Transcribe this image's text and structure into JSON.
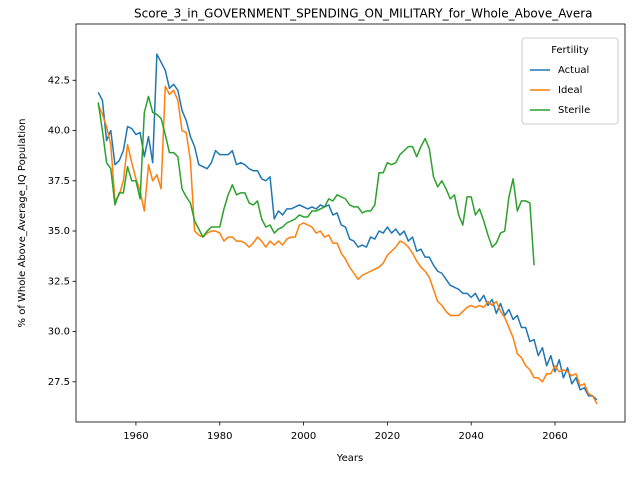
{
  "chart_data": {
    "type": "line",
    "title": "Score_3_in_GOVERNMENT_SPENDING_ON_MILITARY_for_Whole_Above_Avera",
    "xlabel": "Years",
    "ylabel": "% of Whole Above_Average_IQ Population",
    "legend_title": "Fertility",
    "legend": "upper right",
    "x": [
      1951,
      1952,
      1953,
      1954,
      1955,
      1956,
      1957,
      1958,
      1959,
      1960,
      1961,
      1962,
      1963,
      1964,
      1965,
      1966,
      1967,
      1968,
      1969,
      1970,
      1971,
      1972,
      1973,
      1974,
      1975,
      1976,
      1977,
      1978,
      1979,
      1980,
      1981,
      1982,
      1983,
      1984,
      1985,
      1986,
      1987,
      1988,
      1989,
      1990,
      1991,
      1992,
      1993,
      1994,
      1995,
      1996,
      1997,
      1998,
      1999,
      2000,
      2001,
      2002,
      2003,
      2004,
      2005,
      2006,
      2007,
      2008,
      2009,
      2010,
      2011,
      2012,
      2013,
      2014,
      2015,
      2016,
      2017,
      2018,
      2019,
      2020,
      2021,
      2022,
      2023,
      2024,
      2025,
      2026,
      2027,
      2028,
      2029,
      2030,
      2031,
      2032,
      2033,
      2034,
      2035,
      2036,
      2037,
      2038,
      2039,
      2040,
      2041,
      2042,
      2043,
      2044,
      2045,
      2046,
      2047,
      2048,
      2049,
      2050,
      2051,
      2052,
      2053,
      2054,
      2055,
      2056,
      2057,
      2058,
      2059,
      2060,
      2061,
      2062,
      2063,
      2064,
      2065,
      2066,
      2067,
      2068,
      2069,
      2070
    ],
    "series": [
      {
        "name": "Actual",
        "color": "#1f77b4",
        "values": [
          41.9,
          41.5,
          39.5,
          40.0,
          38.3,
          38.5,
          39.0,
          40.2,
          40.1,
          39.8,
          39.9,
          38.7,
          39.7,
          38.4,
          43.8,
          43.4,
          43.0,
          42.1,
          42.3,
          42.0,
          41.0,
          40.5,
          39.7,
          39.2,
          38.3,
          38.2,
          38.1,
          38.4,
          39.0,
          38.8,
          38.8,
          38.8,
          39.0,
          38.3,
          38.4,
          38.3,
          38.1,
          38.0,
          38.0,
          37.6,
          37.5,
          37.7,
          35.6,
          36.0,
          35.8,
          36.1,
          36.1,
          36.2,
          36.3,
          36.2,
          36.1,
          36.2,
          36.1,
          36.3,
          36.2,
          36.3,
          35.8,
          35.9,
          35.3,
          35.2,
          34.6,
          34.5,
          34.2,
          34.3,
          34.2,
          34.7,
          34.6,
          35.0,
          34.9,
          35.2,
          34.9,
          35.1,
          34.8,
          35.0,
          34.5,
          34.7,
          34.0,
          34.1,
          33.7,
          33.7,
          33.3,
          33.0,
          32.9,
          32.6,
          32.3,
          32.2,
          32.1,
          31.9,
          31.9,
          31.7,
          31.9,
          31.5,
          31.8,
          31.3,
          31.6,
          30.9,
          31.4,
          30.8,
          31.1,
          30.6,
          30.8,
          30.2,
          30.2,
          29.5,
          29.6,
          28.8,
          29.2,
          28.3,
          28.8,
          28.0,
          28.6,
          27.7,
          28.2,
          27.4,
          27.7,
          27.1,
          27.2,
          26.8,
          26.8,
          26.6
        ]
      },
      {
        "name": "Ideal",
        "color": "#ff7f0e",
        "values": [
          41.3,
          40.8,
          40.2,
          39.3,
          36.5,
          36.8,
          37.5,
          39.3,
          38.4,
          37.6,
          37.0,
          36.0,
          38.3,
          37.5,
          37.8,
          37.1,
          42.2,
          41.8,
          42.0,
          41.5,
          40.0,
          39.9,
          38.5,
          35.0,
          34.8,
          34.7,
          34.9,
          35.0,
          35.0,
          34.9,
          34.5,
          34.7,
          34.7,
          34.5,
          34.5,
          34.4,
          34.2,
          34.4,
          34.7,
          34.5,
          34.2,
          34.5,
          34.3,
          34.5,
          34.3,
          34.6,
          34.7,
          34.7,
          35.3,
          35.4,
          35.3,
          35.2,
          34.9,
          35.0,
          34.7,
          34.8,
          34.4,
          34.4,
          33.9,
          33.6,
          33.2,
          32.9,
          32.6,
          32.8,
          32.9,
          33.0,
          33.1,
          33.2,
          33.4,
          33.8,
          34.0,
          34.2,
          34.5,
          34.4,
          34.2,
          33.9,
          33.5,
          33.2,
          33.0,
          32.7,
          32.1,
          31.5,
          31.3,
          31.0,
          30.8,
          30.8,
          30.8,
          31.0,
          31.2,
          31.3,
          31.2,
          31.3,
          31.2,
          31.5,
          31.3,
          31.5,
          31.0,
          30.7,
          30.2,
          29.7,
          28.9,
          28.7,
          28.3,
          28.1,
          27.7,
          27.7,
          27.5,
          27.9,
          27.9,
          28.3,
          28.0,
          28.1,
          28.0,
          27.8,
          27.9,
          27.3,
          27.4,
          26.9,
          26.8,
          26.4
        ]
      },
      {
        "name": "Sterile",
        "color": "#2ca02c",
        "values": [
          41.4,
          40.0,
          38.4,
          38.1,
          36.3,
          36.9,
          36.9,
          38.2,
          37.5,
          37.5,
          36.6,
          40.9,
          41.7,
          40.9,
          40.8,
          40.6,
          39.8,
          38.9,
          38.9,
          38.7,
          37.1,
          36.7,
          36.4,
          35.5,
          35.1,
          34.7,
          35.0,
          35.2,
          35.2,
          35.2,
          36.1,
          36.8,
          37.3,
          36.8,
          36.9,
          36.9,
          36.4,
          36.3,
          36.5,
          35.6,
          35.2,
          35.3,
          34.9,
          35.1,
          35.2,
          35.4,
          35.5,
          35.6,
          35.8,
          35.7,
          35.7,
          36.0,
          36.0,
          36.1,
          36.2,
          36.6,
          36.5,
          36.8,
          36.7,
          36.6,
          36.3,
          36.2,
          36.2,
          35.9,
          36.0,
          36.0,
          36.3,
          37.9,
          37.9,
          38.4,
          38.3,
          38.4,
          38.8,
          39.0,
          39.2,
          39.2,
          38.7,
          39.2,
          39.6,
          39.1,
          37.7,
          37.2,
          37.5,
          37.1,
          36.6,
          36.8,
          35.8,
          35.3,
          36.7,
          36.7,
          35.8,
          36.1,
          35.5,
          34.8,
          34.2,
          34.4,
          34.9,
          35.0,
          36.7,
          37.6,
          36.0,
          36.5,
          36.5,
          36.4,
          33.3,
          null,
          null,
          null,
          null,
          null,
          null,
          null,
          null,
          null,
          null,
          null,
          null,
          null,
          null,
          null
        ]
      }
    ],
    "xlim": [
      1945.7,
      2076.7
    ],
    "ylim": [
      25.5,
      45.3
    ],
    "xticks": [
      1960,
      1980,
      2000,
      2020,
      2040,
      2060
    ],
    "yticks": [
      27.5,
      {
        "value": 30,
        "label": "30.0"
      },
      32.5,
      {
        "value": 35,
        "label": "35.0"
      },
      37.5,
      {
        "value": 40,
        "label": "40.0"
      },
      42.5
    ],
    "grid": false
  }
}
